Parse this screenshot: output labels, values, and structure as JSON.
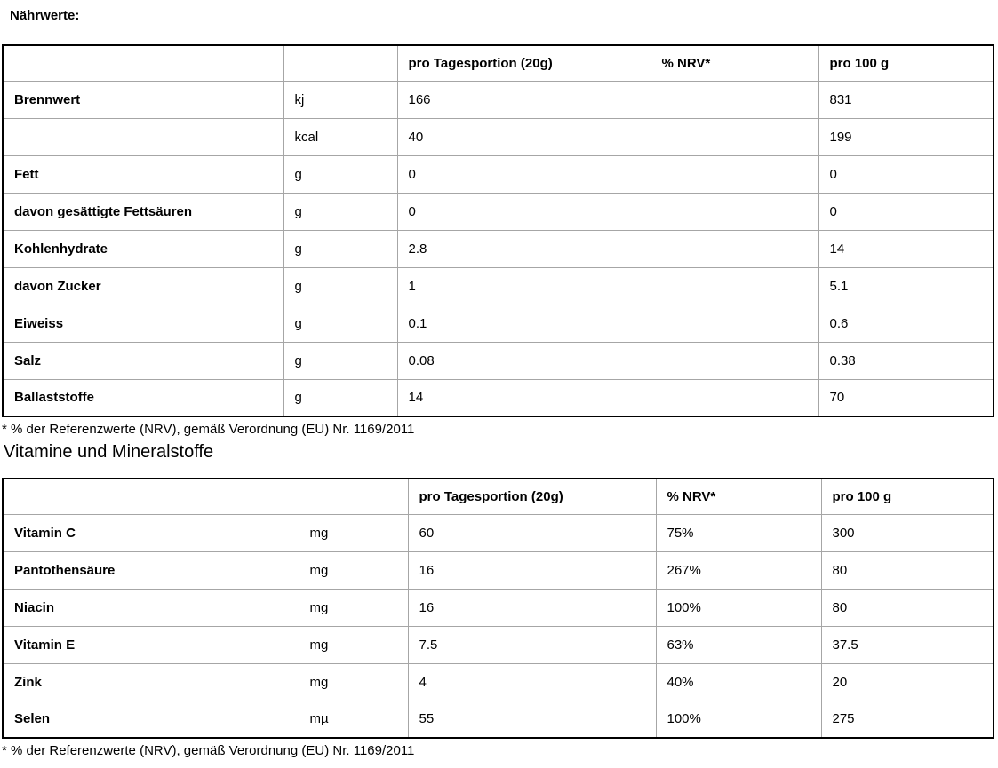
{
  "page": {
    "title": "Nährwerte:",
    "section_heading": "Vitamine und Mineralstoffe",
    "footnote1": "* % der Referenzwerte (NRV), gemäß Verordnung (EU) Nr. 1169/2011",
    "footnote2": "* % der Referenzwerte (NRV), gemäß Verordnung (EU) Nr. 1169/2011"
  },
  "colors": {
    "outer_border": "#000000",
    "inner_border": "#a6a6a6",
    "text": "#000000",
    "background": "#ffffff"
  },
  "tables": [
    {
      "name": "naehrwerte",
      "headers": {
        "name": "",
        "unit": "",
        "portion": "pro Tagesportion (20g)",
        "nrv": "% NRV*",
        "per100": "pro 100 g"
      },
      "rows": [
        {
          "name": "Brennwert",
          "unit": "kj",
          "portion": "166",
          "nrv": "",
          "per100": "831"
        },
        {
          "name": "",
          "unit": "kcal",
          "portion": "40",
          "nrv": "",
          "per100": "199"
        },
        {
          "name": "Fett",
          "unit": "g",
          "portion": "0",
          "nrv": "",
          "per100": "0"
        },
        {
          "name": "davon gesättigte Fettsäuren",
          "unit": "g",
          "portion": "0",
          "nrv": "",
          "per100": "0"
        },
        {
          "name": "Kohlenhydrate",
          "unit": "g",
          "portion": "2.8",
          "nrv": "",
          "per100": "14"
        },
        {
          "name": "davon Zucker",
          "unit": "g",
          "portion": "1",
          "nrv": "",
          "per100": "5.1"
        },
        {
          "name": "Eiweiss",
          "unit": "g",
          "portion": "0.1",
          "nrv": "",
          "per100": "0.6"
        },
        {
          "name": "Salz",
          "unit": "g",
          "portion": "0.08",
          "nrv": "",
          "per100": "0.38"
        },
        {
          "name": "Ballaststoffe",
          "unit": "g",
          "portion": "14",
          "nrv": "",
          "per100": "70"
        }
      ]
    },
    {
      "name": "vitamine-und-mineralstoffe",
      "headers": {
        "name": "",
        "unit": "",
        "portion": "pro Tagesportion (20g)",
        "nrv": "% NRV*",
        "per100": "pro 100 g"
      },
      "rows": [
        {
          "name": "Vitamin C",
          "unit": "mg",
          "portion": "60",
          "nrv": "75%",
          "per100": "300"
        },
        {
          "name": "Pantothensäure",
          "unit": "mg",
          "portion": "16",
          "nrv": "267%",
          "per100": "80"
        },
        {
          "name": "Niacin",
          "unit": "mg",
          "portion": "16",
          "nrv": "100%",
          "per100": "80"
        },
        {
          "name": "Vitamin E",
          "unit": "mg",
          "portion": "7.5",
          "nrv": "63%",
          "per100": "37.5"
        },
        {
          "name": "Zink",
          "unit": "mg",
          "portion": "4",
          "nrv": "40%",
          "per100": "20"
        },
        {
          "name": "Selen",
          "unit": "mµ",
          "portion": "55",
          "nrv": "100%",
          "per100": "275"
        }
      ]
    }
  ]
}
